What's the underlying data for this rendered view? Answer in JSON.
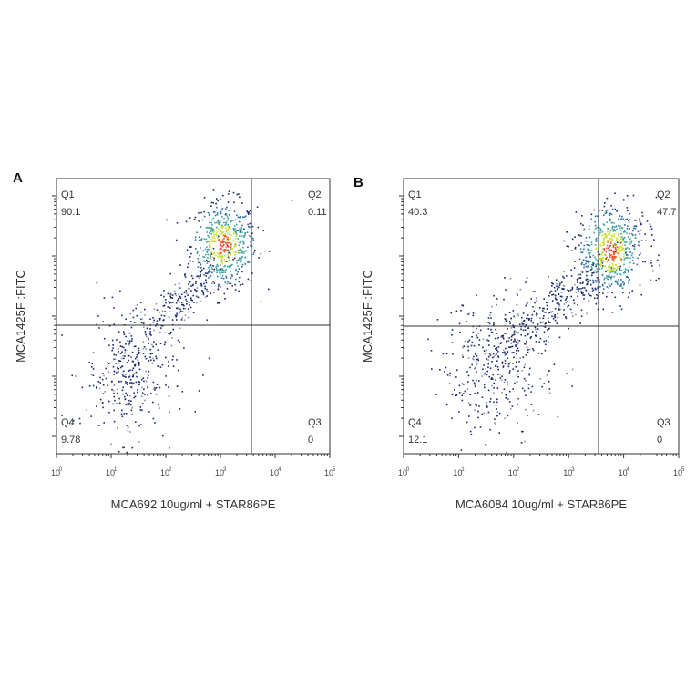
{
  "chart_data": [
    {
      "type": "scatter",
      "panel": "A",
      "xlabel": "MCA692 10ug/ml + STAR86PE",
      "ylabel": "MCA1425F :FITC",
      "x_scale": "log",
      "xlim": [
        1,
        100000
      ],
      "x_ticks": [
        "10",
        "10",
        "10",
        "10",
        "10",
        "10"
      ],
      "x_tick_exponents": [
        "0",
        "1",
        "2",
        "3",
        "4",
        "5"
      ],
      "y_ticks_count": 5,
      "quadrants": [
        {
          "name": "Q1",
          "value": "90.1"
        },
        {
          "name": "Q2",
          "value": "0.11"
        },
        {
          "name": "Q3",
          "value": "0"
        },
        {
          "name": "Q4",
          "value": "9.78"
        }
      ],
      "clusters": [
        {
          "label": "main",
          "x_log_center": 3.05,
          "y_frac_center": 0.76,
          "x_spread": 0.3,
          "y_spread": 0.08,
          "count": 520,
          "dense": true
        },
        {
          "label": "trail",
          "x_log_center": 2.2,
          "y_frac_center": 0.55,
          "x_spread": 0.55,
          "y_spread": 0.12,
          "count": 260,
          "dense": false
        },
        {
          "label": "low",
          "x_log_center": 1.35,
          "y_frac_center": 0.28,
          "x_spread": 0.42,
          "y_spread": 0.12,
          "count": 330,
          "dense": false
        }
      ]
    },
    {
      "type": "scatter",
      "panel": "B",
      "xlabel": "MCA6084 10ug/ml + STAR86PE",
      "ylabel": "MCA1425F :FITC",
      "x_scale": "log",
      "xlim": [
        1,
        100000
      ],
      "x_ticks": [
        "10",
        "10",
        "10",
        "10",
        "10",
        "10"
      ],
      "x_tick_exponents": [
        "0",
        "1",
        "2",
        "3",
        "4",
        "5"
      ],
      "y_ticks_count": 5,
      "quadrants": [
        {
          "name": "Q1",
          "value": "40.3"
        },
        {
          "name": "Q2",
          "value": "47.7"
        },
        {
          "name": "Q3",
          "value": "0"
        },
        {
          "name": "Q4",
          "value": "12.1"
        }
      ],
      "clusters": [
        {
          "label": "main",
          "x_log_center": 3.75,
          "y_frac_center": 0.74,
          "x_spread": 0.3,
          "y_spread": 0.08,
          "count": 560,
          "dense": true
        },
        {
          "label": "trail",
          "x_log_center": 2.8,
          "y_frac_center": 0.55,
          "x_spread": 0.65,
          "y_spread": 0.13,
          "count": 360,
          "dense": false
        },
        {
          "label": "low",
          "x_log_center": 1.65,
          "y_frac_center": 0.32,
          "x_spread": 0.5,
          "y_spread": 0.13,
          "count": 380,
          "dense": false
        }
      ]
    }
  ],
  "colors": {
    "sparse": "#1b2a6b",
    "mid": "#3aa3a0",
    "dense": "#c8e02a",
    "core": "#ee5a2b",
    "axis": "#333333"
  }
}
